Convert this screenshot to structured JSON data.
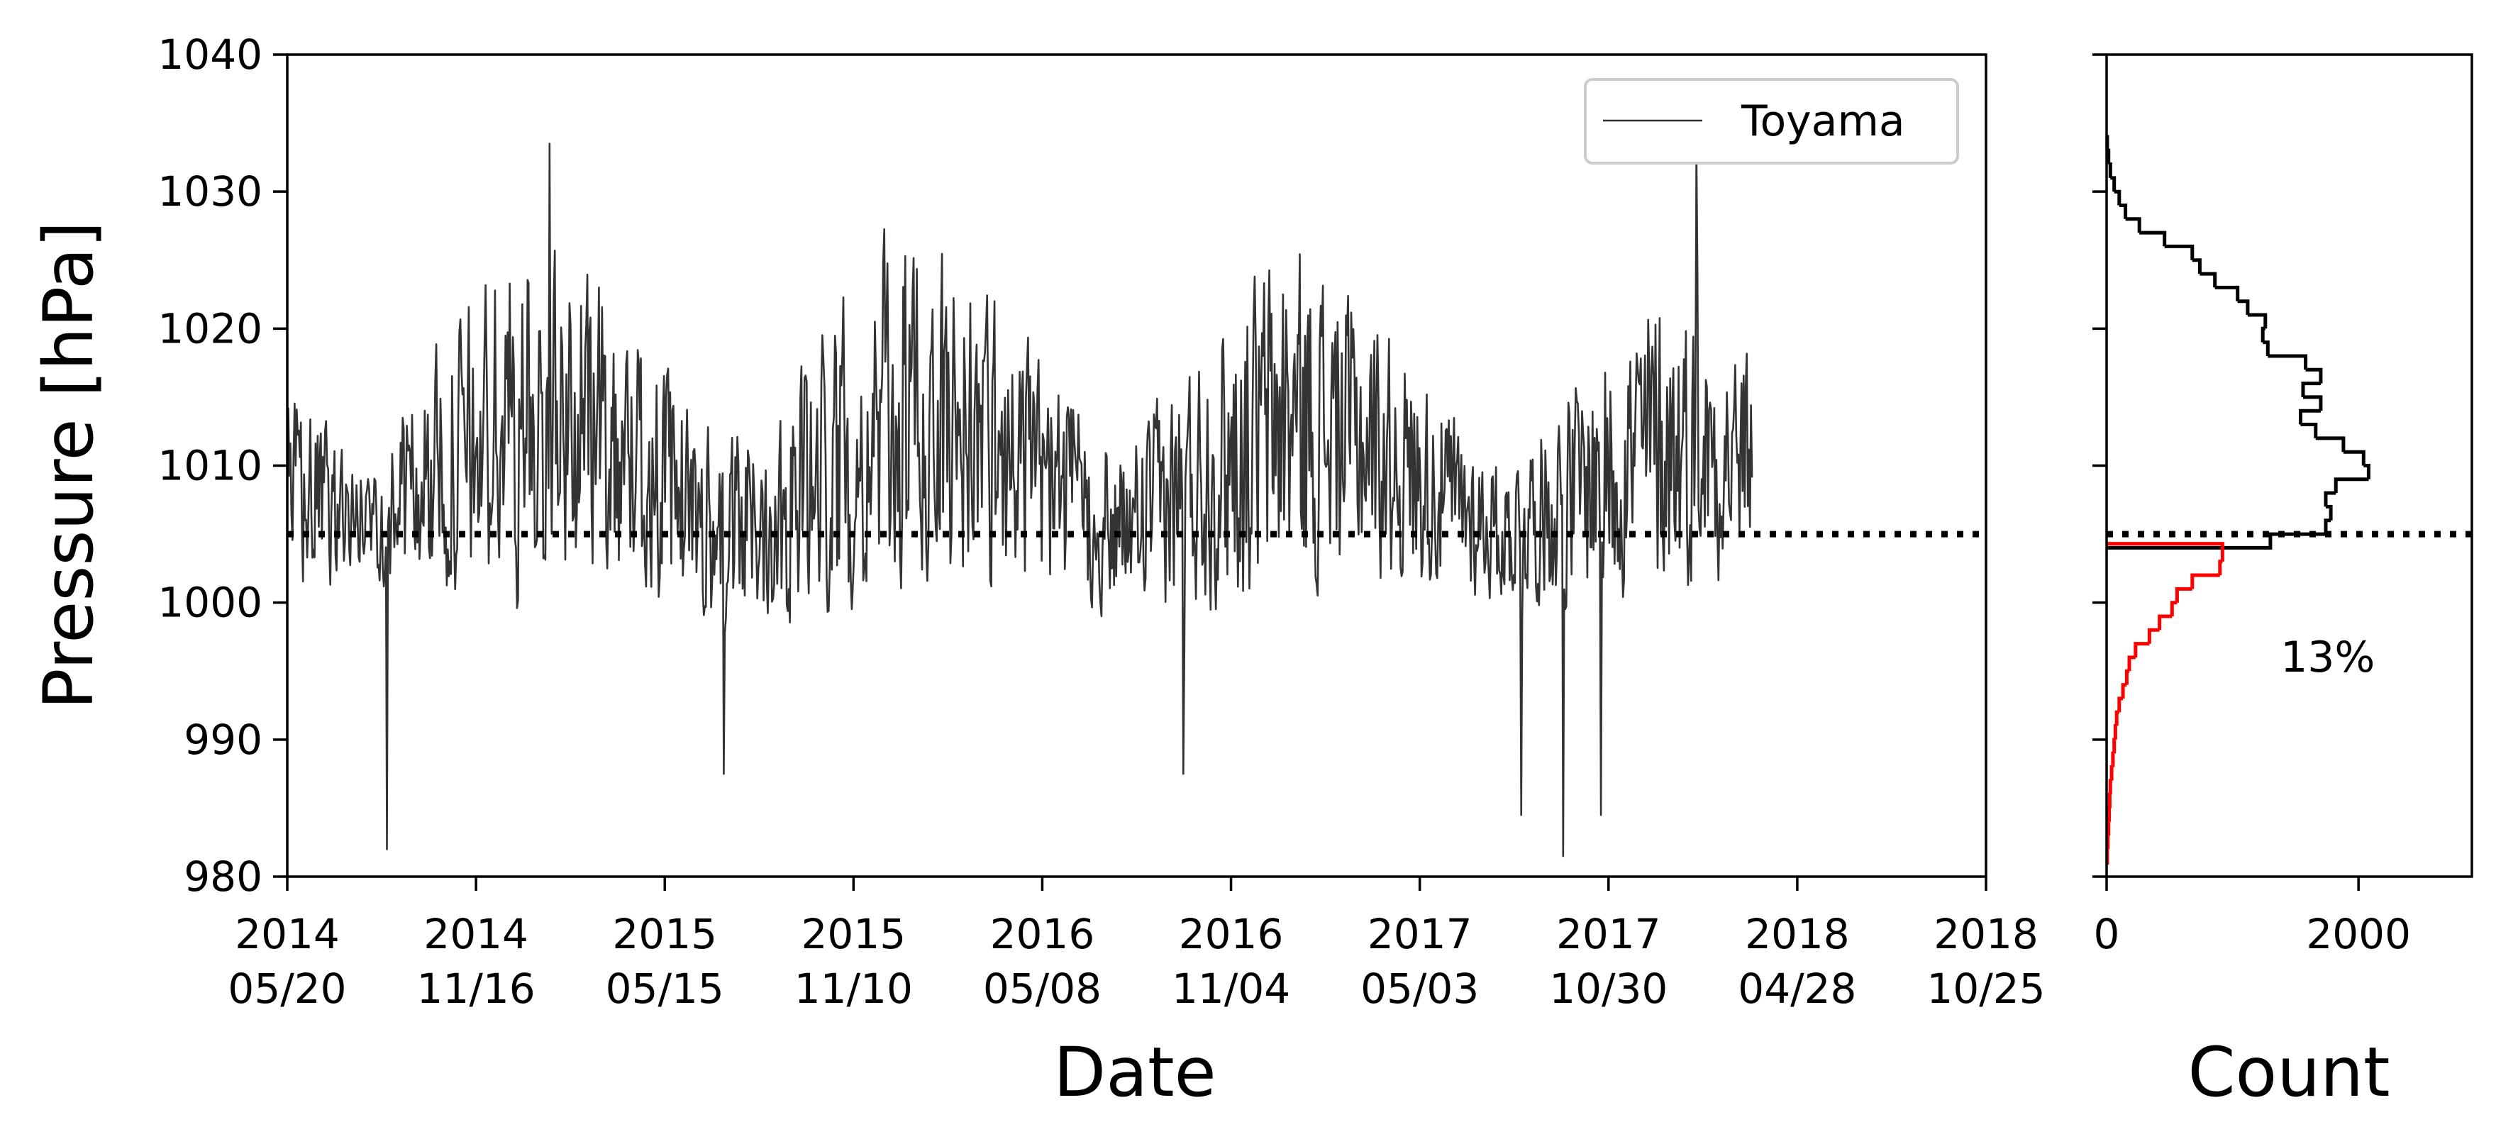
{
  "chart_data": [
    {
      "type": "line",
      "xlabel": "Date",
      "ylabel": "Pressure [hPa]",
      "ylim": [
        980,
        1040
      ],
      "yticks": [
        "980",
        "990",
        "1000",
        "1010",
        "1020",
        "1030",
        "1040"
      ],
      "x_axis_type": "date",
      "xlim": [
        "2014-05-20",
        "2018-10-25"
      ],
      "xticks": [
        {
          "year": "2014",
          "day": "05/20"
        },
        {
          "year": "2014",
          "day": "11/16"
        },
        {
          "year": "2015",
          "day": "05/15"
        },
        {
          "year": "2015",
          "day": "11/10"
        },
        {
          "year": "2016",
          "day": "05/08"
        },
        {
          "year": "2016",
          "day": "11/04"
        },
        {
          "year": "2017",
          "day": "05/03"
        },
        {
          "year": "2017",
          "day": "10/30"
        },
        {
          "year": "2018",
          "day": "04/28"
        },
        {
          "year": "2018",
          "day": "10/25"
        }
      ],
      "legend": {
        "placement": "top-right",
        "entries": [
          "Toyama"
        ]
      },
      "series": [
        {
          "name": "Toyama",
          "color": "#333333",
          "x_start": "2014-05-20",
          "x_end": "2018-03-16",
          "sampling": "daily",
          "seasonal_envelope": [
            {
              "date": "2014-05-20",
              "low": 998,
              "high": 1018
            },
            {
              "date": "2014-08-01",
              "low": 1000,
              "high": 1012
            },
            {
              "date": "2014-12-15",
              "low": 995,
              "high": 1031
            },
            {
              "date": "2015-03-01",
              "low": 998,
              "high": 1029
            },
            {
              "date": "2015-07-15",
              "low": 995,
              "high": 1014
            },
            {
              "date": "2015-12-20",
              "low": 995,
              "high": 1032
            },
            {
              "date": "2016-03-01",
              "low": 997,
              "high": 1029
            },
            {
              "date": "2016-07-20",
              "low": 997,
              "high": 1013
            },
            {
              "date": "2016-12-20",
              "low": 995,
              "high": 1032
            },
            {
              "date": "2017-03-01",
              "low": 998,
              "high": 1027
            },
            {
              "date": "2017-07-20",
              "low": 998,
              "high": 1012
            },
            {
              "date": "2017-12-15",
              "low": 996,
              "high": 1028
            },
            {
              "date": "2018-03-16",
              "low": 1000,
              "high": 1021
            }
          ],
          "extremes": [
            {
              "date": "2014-08-23",
              "value": 982
            },
            {
              "date": "2015-01-25",
              "value": 1033.5
            },
            {
              "date": "2015-07-10",
              "value": 987.5
            },
            {
              "date": "2016-09-20",
              "value": 987.5
            },
            {
              "date": "2017-08-08",
              "value": 984.5
            },
            {
              "date": "2017-09-17",
              "value": 981.5
            },
            {
              "date": "2017-10-23",
              "value": 984.5
            },
            {
              "date": "2018-01-22",
              "value": 1033
            }
          ]
        }
      ],
      "reference_line": {
        "y": 1005,
        "style": "dotted",
        "color": "#000000"
      }
    },
    {
      "type": "histogram",
      "orientation": "horizontal",
      "xlabel": "Count",
      "xlim": [
        0,
        2900
      ],
      "xticks": [
        "0",
        "2000"
      ],
      "ylim": [
        980,
        1040
      ],
      "bin_width": 1,
      "series": [
        {
          "color": "#000000",
          "bins": [
            {
              "y0": 1004,
              "y1": 1005,
              "count": 1300
            },
            {
              "y0": 1005,
              "y1": 1006,
              "count": 1740
            },
            {
              "y0": 1006,
              "y1": 1007,
              "count": 1780
            },
            {
              "y0": 1007,
              "y1": 1008,
              "count": 1740
            },
            {
              "y0": 1008,
              "y1": 1009,
              "count": 1820
            },
            {
              "y0": 1009,
              "y1": 1010,
              "count": 2080
            },
            {
              "y0": 1010,
              "y1": 1011,
              "count": 2040
            },
            {
              "y0": 1011,
              "y1": 1012,
              "count": 1880
            },
            {
              "y0": 1012,
              "y1": 1013,
              "count": 1660
            },
            {
              "y0": 1013,
              "y1": 1014,
              "count": 1540
            },
            {
              "y0": 1014,
              "y1": 1015,
              "count": 1700
            },
            {
              "y0": 1015,
              "y1": 1016,
              "count": 1560
            },
            {
              "y0": 1016,
              "y1": 1017,
              "count": 1700
            },
            {
              "y0": 1017,
              "y1": 1018,
              "count": 1580
            },
            {
              "y0": 1018,
              "y1": 1019,
              "count": 1280
            },
            {
              "y0": 1019,
              "y1": 1020,
              "count": 1240
            },
            {
              "y0": 1020,
              "y1": 1021,
              "count": 1260
            },
            {
              "y0": 1021,
              "y1": 1022,
              "count": 1120
            },
            {
              "y0": 1022,
              "y1": 1023,
              "count": 1040
            },
            {
              "y0": 1023,
              "y1": 1024,
              "count": 860
            },
            {
              "y0": 1024,
              "y1": 1025,
              "count": 740
            },
            {
              "y0": 1025,
              "y1": 1026,
              "count": 680
            },
            {
              "y0": 1026,
              "y1": 1027,
              "count": 460
            },
            {
              "y0": 1027,
              "y1": 1028,
              "count": 260
            },
            {
              "y0": 1028,
              "y1": 1029,
              "count": 150
            },
            {
              "y0": 1029,
              "y1": 1030,
              "count": 100
            },
            {
              "y0": 1030,
              "y1": 1031,
              "count": 60
            },
            {
              "y0": 1031,
              "y1": 1032,
              "count": 30
            },
            {
              "y0": 1032,
              "y1": 1033,
              "count": 15
            },
            {
              "y0": 1033,
              "y1": 1034,
              "count": 5
            }
          ]
        },
        {
          "color": "#ff0000",
          "bins": [
            {
              "y0": 981,
              "y1": 982,
              "count": 5
            },
            {
              "y0": 982,
              "y1": 983,
              "count": 10
            },
            {
              "y0": 983,
              "y1": 984,
              "count": 15
            },
            {
              "y0": 984,
              "y1": 985,
              "count": 20
            },
            {
              "y0": 985,
              "y1": 986,
              "count": 25
            },
            {
              "y0": 986,
              "y1": 987,
              "count": 30
            },
            {
              "y0": 987,
              "y1": 988,
              "count": 40
            },
            {
              "y0": 988,
              "y1": 989,
              "count": 50
            },
            {
              "y0": 989,
              "y1": 990,
              "count": 60
            },
            {
              "y0": 990,
              "y1": 991,
              "count": 70
            },
            {
              "y0": 991,
              "y1": 992,
              "count": 80
            },
            {
              "y0": 992,
              "y1": 993,
              "count": 100
            },
            {
              "y0": 993,
              "y1": 994,
              "count": 130
            },
            {
              "y0": 994,
              "y1": 995,
              "count": 160
            },
            {
              "y0": 995,
              "y1": 996,
              "count": 180
            },
            {
              "y0": 996,
              "y1": 997,
              "count": 230
            },
            {
              "y0": 997,
              "y1": 998,
              "count": 340
            },
            {
              "y0": 998,
              "y1": 999,
              "count": 420
            },
            {
              "y0": 999,
              "y1": 1000,
              "count": 520
            },
            {
              "y0": 1000,
              "y1": 1001,
              "count": 560
            },
            {
              "y0": 1001,
              "y1": 1002,
              "count": 680
            },
            {
              "y0": 1002,
              "y1": 1003,
              "count": 900
            },
            {
              "y0": 1003,
              "y1": 1004.3,
              "count": 920
            }
          ]
        }
      ],
      "reference_line": {
        "y": 1005,
        "style": "dotted",
        "color": "#000000"
      },
      "annotation": {
        "text": "13%",
        "x": 1380,
        "y": 996
      }
    }
  ]
}
